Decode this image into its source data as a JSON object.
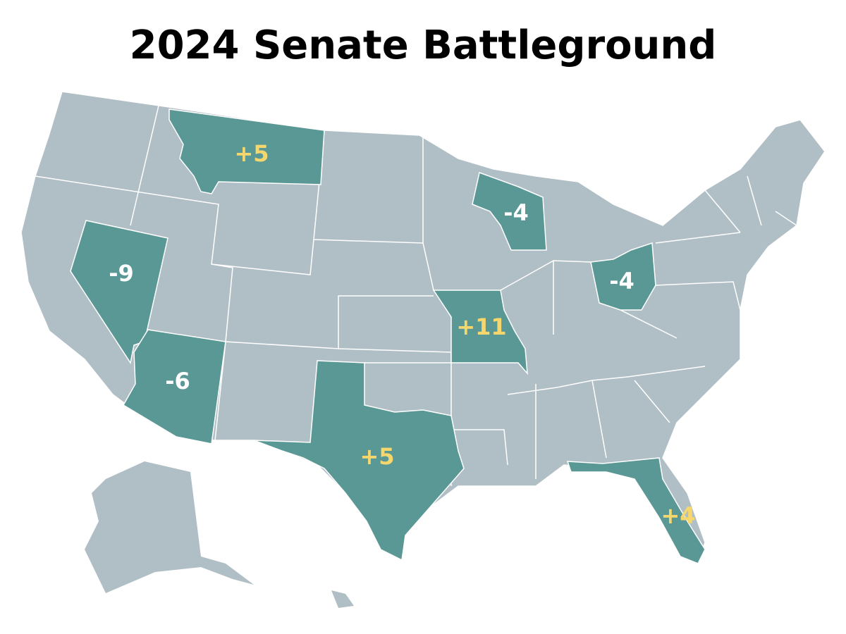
{
  "title": "2024 Senate Battleground",
  "map": {
    "values": [
      5,
      -9,
      -4,
      -4,
      11,
      -6,
      5,
      4
    ],
    "value_labels": [
      "+5",
      "-9",
      "-4",
      "-4",
      "+11",
      "-6",
      "+5",
      "+4"
    ],
    "base_color": "#b0bec5",
    "highlight_color": "#5a9896",
    "positive_label_color": "#f5d76e",
    "negative_label_color": "#ffffff"
  }
}
